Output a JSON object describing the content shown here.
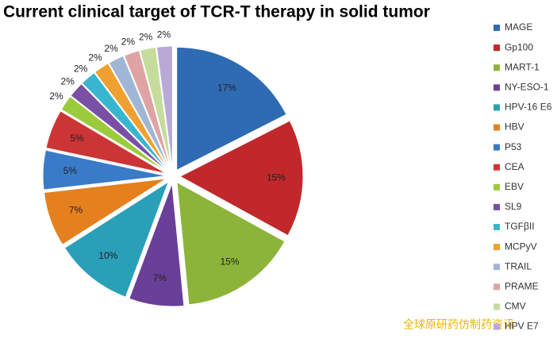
{
  "chart_data": {
    "type": "pie",
    "title": "Current clinical target of TCR-T therapy in solid tumor",
    "categories": [
      "MAGE",
      "Gp100",
      "MART-1",
      "NY-ESO-1",
      "HPV-16 E6",
      "HBV",
      "P53",
      "CEA",
      "EBV",
      "SL9",
      "TGFβII",
      "MCPyV",
      "TRAIL",
      "PRAME",
      "CMV",
      "HPV E7"
    ],
    "values": [
      17,
      15,
      15,
      7,
      10,
      7,
      5,
      5,
      2,
      2,
      2,
      2,
      2,
      2,
      2,
      2
    ],
    "value_labels": [
      "17%",
      "15%",
      "15%",
      "7%",
      "10%",
      "7%",
      "5%",
      "5%",
      "2%",
      "2%",
      "2%",
      "2%",
      "2%",
      "2%",
      "2%",
      "2%"
    ],
    "colors": [
      "#2e6bb3",
      "#c0282b",
      "#8cb43a",
      "#6a3f97",
      "#2a9fb8",
      "#e5801f",
      "#3a7bc8",
      "#cc3535",
      "#9bcb3c",
      "#7a4fa6",
      "#39b6cf",
      "#f0a030",
      "#9fb6d5",
      "#e0a3a3",
      "#c6dc9c",
      "#b9a9d6"
    ],
    "legend": "right",
    "watermark": "全球原研药仿制药资讯"
  }
}
